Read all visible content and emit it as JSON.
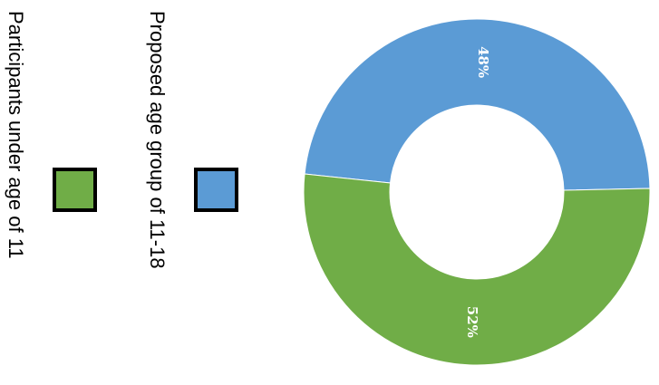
{
  "chart_data": {
    "type": "pie",
    "donut": true,
    "orientation": "rotated-90-clockwise",
    "title": "",
    "categories": [
      "Proposed age group of 11-18",
      "Participants under age of 11"
    ],
    "values": [
      48,
      52
    ],
    "labels": [
      "48%",
      "52%"
    ],
    "colors": [
      "#5b9bd5",
      "#70ad47"
    ],
    "legend": {
      "position": "left",
      "entries": [
        {
          "label": "Proposed age group of 11-18",
          "color": "#5b9bd5"
        },
        {
          "label": "Participants under age of 11",
          "color": "#70ad47"
        }
      ]
    }
  }
}
